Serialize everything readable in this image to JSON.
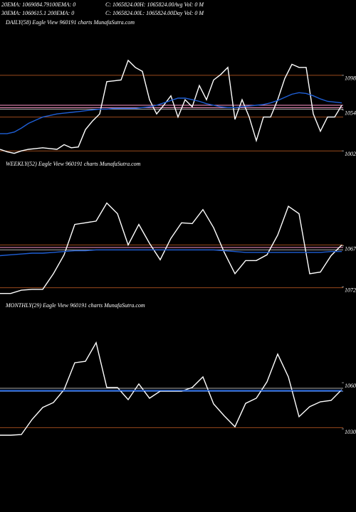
{
  "header": [
    "20EMA: 1069084.79100EMA: 0",
    "C: 1065824.00H: 1065824.00Avg Vol: 0  M",
    "30EMA: 1060615.1 200EMA: 0",
    "C: 1065824.00L: 1065824.00Day Vol: 0  M"
  ],
  "chart_data": [
    {
      "type": "line",
      "title": "DAILY(58) Eagle  View  960191 charts MunafaSutra.com",
      "ylim": [
        995,
        1162
      ],
      "yticks": [
        1098,
        1054,
        1002
      ],
      "levels": [
        {
          "value": 1098,
          "color": "#9a4a1c"
        },
        {
          "value": 1060,
          "color": "#ff99cc"
        },
        {
          "value": 1057,
          "color": "#ff99cc"
        },
        {
          "value": 1055,
          "color": "#aaaaaa"
        },
        {
          "value": 1045,
          "color": "#9a4a1c"
        },
        {
          "value": 1002,
          "color": "#9a4a1c"
        }
      ],
      "series": [
        {
          "color": "#ffffff",
          "values": [
            1004,
            1001,
            999,
            1002,
            1004,
            1005,
            1006,
            1005,
            1004,
            1010,
            1006,
            1007,
            1029,
            1040,
            1049,
            1090,
            1091,
            1092,
            1117,
            1108,
            1103,
            1067,
            1049,
            1060,
            1072,
            1045,
            1067,
            1058,
            1085,
            1067,
            1092,
            1099,
            1108,
            1042,
            1067,
            1045,
            1015,
            1045,
            1045,
            1067,
            1094,
            1112,
            1108,
            1108,
            1049,
            1027,
            1045,
            1045,
            1060
          ]
        },
        {
          "color": "#1f5fd6",
          "values": [
            1024,
            1024,
            1026,
            1031,
            1037,
            1041,
            1045,
            1047,
            1049,
            1050,
            1051,
            1052,
            1053,
            1054,
            1055,
            1055,
            1056,
            1056,
            1056,
            1056,
            1057,
            1058,
            1060,
            1063,
            1066,
            1069,
            1069,
            1067,
            1065,
            1062,
            1060,
            1058,
            1057,
            1057,
            1058,
            1059,
            1060,
            1061,
            1063,
            1066,
            1070,
            1074,
            1076,
            1075,
            1072,
            1068,
            1065,
            1064,
            1063
          ]
        }
      ]
    },
    {
      "type": "line",
      "title": "WEEKLY(52) Eagle  View  960191 charts MunafaSutra.com",
      "ylim": [
        1073,
        1057
      ],
      "yticks": [
        1067,
        1072
      ],
      "levels": [
        {
          "value": 1066.9,
          "color": "#9a4a1c"
        },
        {
          "value": 1067.2,
          "color": "#ff99cc"
        },
        {
          "value": 1067.5,
          "color": "#aaaaaa"
        },
        {
          "value": 1072.1,
          "color": "#9a4a1c"
        }
      ],
      "series": [
        {
          "color": "#ffffff",
          "values": [
            1072.8,
            1072.8,
            1072.4,
            1072.3,
            1072.3,
            1070.4,
            1068.1,
            1064.4,
            1064.2,
            1064.0,
            1061.8,
            1063.1,
            1066.9,
            1064.4,
            1066.7,
            1068.7,
            1066.1,
            1064.2,
            1064.3,
            1062.6,
            1064.8,
            1067.8,
            1070.4,
            1068.8,
            1068.8,
            1068.1,
            1065.7,
            1062.2,
            1063.1,
            1070.4,
            1070.2,
            1068.2,
            1066.9
          ]
        },
        {
          "color": "#1f5fd6",
          "values": [
            1068.2,
            1068.1,
            1068.0,
            1067.9,
            1067.9,
            1067.8,
            1067.7,
            1067.6,
            1067.6,
            1067.5,
            1067.5,
            1067.5,
            1067.5,
            1067.5,
            1067.5,
            1067.5,
            1067.5,
            1067.5,
            1067.5,
            1067.5,
            1067.5,
            1067.6,
            1067.7,
            1067.8,
            1067.8,
            1067.8,
            1067.8,
            1067.8,
            1067.8,
            1067.8,
            1067.8,
            1067.7,
            1067.7
          ]
        }
      ]
    },
    {
      "type": "line",
      "title": "MONTHLY(29) Eagle  View  960191 charts MunafaSutra.com",
      "ylim": [
        1024.5,
        1110
      ],
      "yticks": [
        1060,
        1030
      ],
      "levels": [
        {
          "value": 1056.4,
          "color": "#aaaaaa"
        },
        {
          "value": 1054.5,
          "color": "#6aa0ff"
        },
        {
          "value": 1030.8,
          "color": "#9a4a1c"
        }
      ],
      "series": [
        {
          "color": "#ffffff",
          "values": [
            1025.9,
            1025.9,
            1026.3,
            1036.1,
            1043.9,
            1047.1,
            1055.5,
            1073.0,
            1073.9,
            1086.0,
            1056.9,
            1056.9,
            1049.0,
            1059.2,
            1049.9,
            1054.5,
            1054.5,
            1054.5,
            1056.9,
            1063.8,
            1046.2,
            1038.4,
            1031.4,
            1046.6,
            1049.9,
            1060.6,
            1078.6,
            1063.8,
            1037.9,
            1044.4,
            1047.6,
            1048.5,
            1055.5
          ]
        },
        {
          "color": "#1f5fd6",
          "values": [
            1055.0,
            1055.0,
            1055.0,
            1055.0,
            1055.0,
            1055.0,
            1055.0,
            1055.0,
            1055.0,
            1055.0,
            1055.0,
            1055.0,
            1055.0,
            1055.0,
            1055.0,
            1055.0,
            1055.0,
            1055.0,
            1055.0,
            1055.0,
            1055.0,
            1055.0,
            1055.0,
            1055.0,
            1055.0,
            1055.0,
            1055.0,
            1055.0,
            1055.0,
            1055.0,
            1055.0,
            1055.0,
            1055.0
          ]
        }
      ]
    }
  ]
}
